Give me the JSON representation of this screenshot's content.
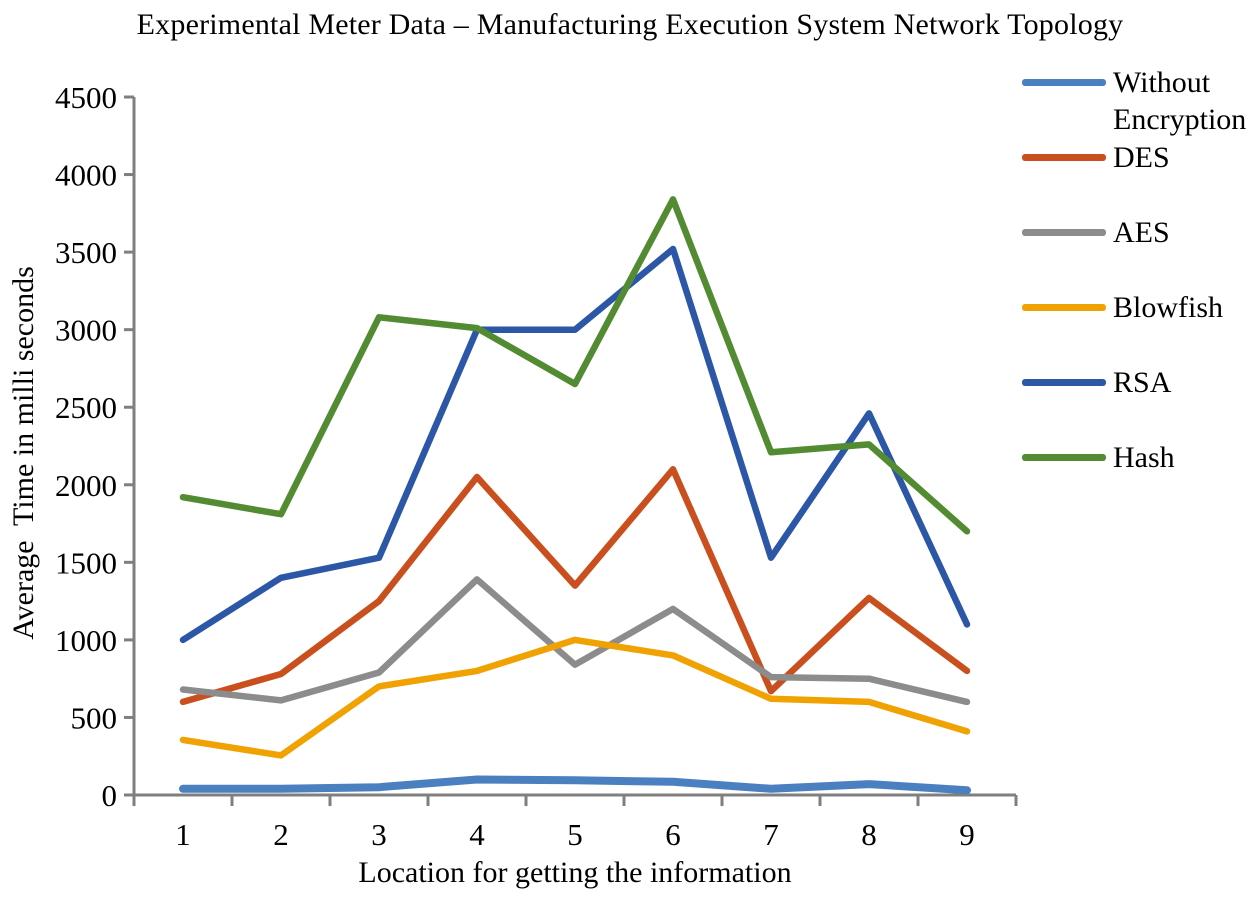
{
  "chart_data": {
    "type": "line",
    "title": "Experimental Meter Data – Manufacturing Execution System Network Topology",
    "xlabel": "Location for getting the information",
    "ylabel": "Average  Time in milli seconds",
    "x": [
      1,
      2,
      3,
      4,
      5,
      6,
      7,
      8,
      9
    ],
    "ylim": [
      0,
      4500
    ],
    "ytick_step": 500,
    "grid": false,
    "legend_position": "right",
    "axis_color": "#7F7F7F",
    "series": [
      {
        "name": "Without Encryption",
        "color": "#4A80BF",
        "values": [
          40,
          40,
          50,
          100,
          95,
          85,
          40,
          70,
          30
        ]
      },
      {
        "name": "DES",
        "color": "#C9501E",
        "values": [
          600,
          780,
          1250,
          2050,
          1350,
          2100,
          670,
          1270,
          800
        ]
      },
      {
        "name": "AES",
        "color": "#8C8C8C",
        "values": [
          680,
          610,
          790,
          1390,
          840,
          1200,
          760,
          750,
          600
        ]
      },
      {
        "name": "Blowfish",
        "color": "#F0A202",
        "values": [
          355,
          255,
          700,
          800,
          1000,
          900,
          620,
          600,
          410
        ]
      },
      {
        "name": "RSA",
        "color": "#2B57A6",
        "values": [
          1000,
          1400,
          1530,
          3000,
          3000,
          3520,
          1530,
          2460,
          1100
        ]
      },
      {
        "name": "Hash",
        "color": "#538B33",
        "values": [
          1920,
          1810,
          3080,
          3010,
          2650,
          3840,
          2210,
          2260,
          1700
        ]
      }
    ]
  }
}
